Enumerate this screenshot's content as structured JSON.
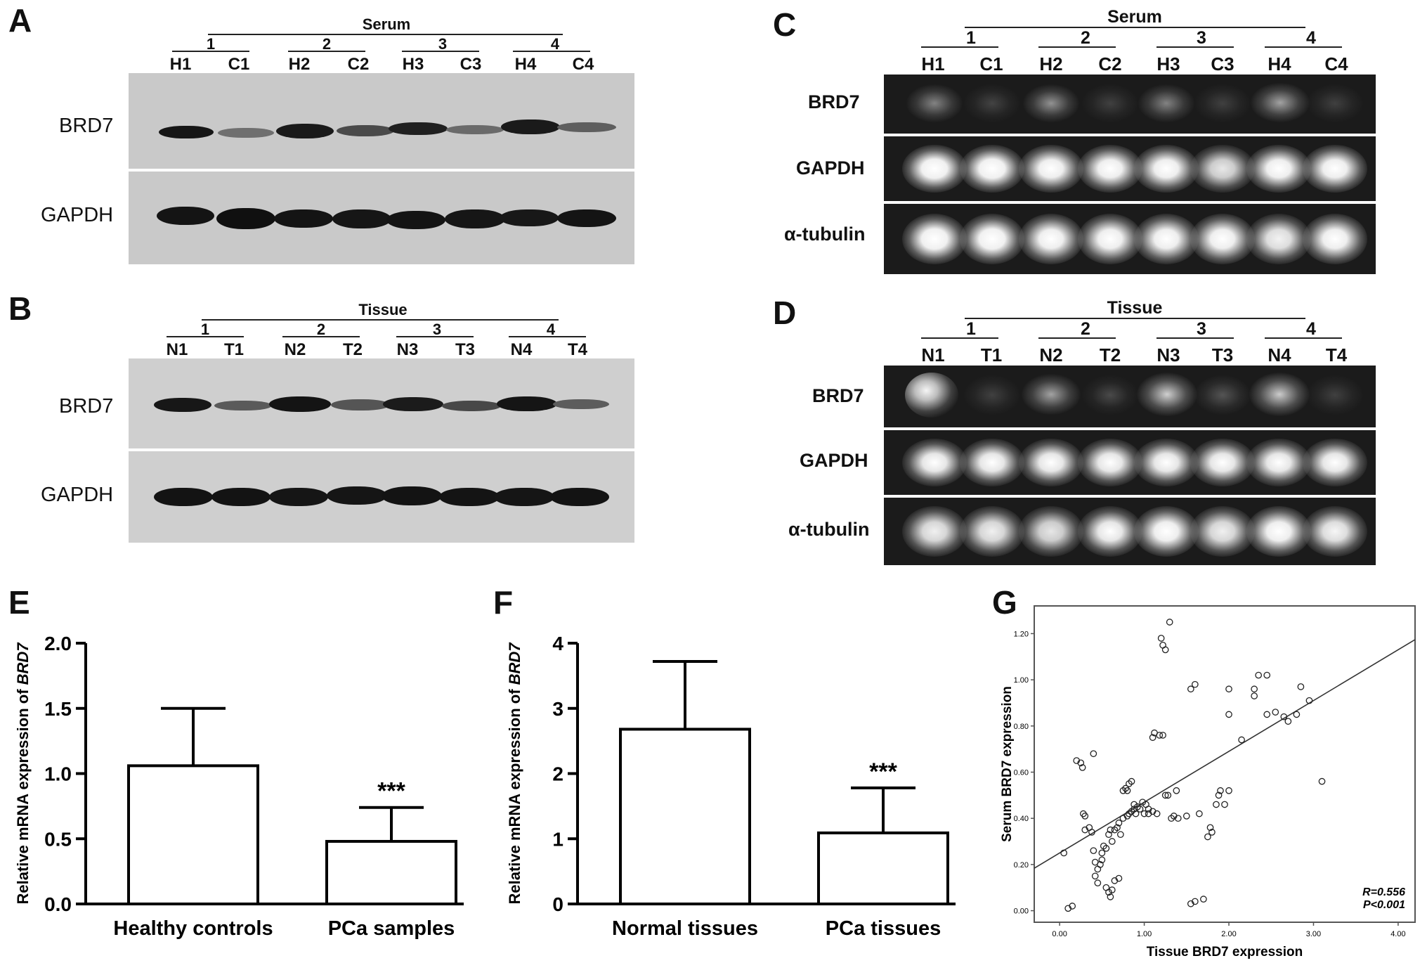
{
  "panels": {
    "A": {
      "label": "A",
      "group": "Serum",
      "pairs": [
        "1",
        "2",
        "3",
        "4"
      ],
      "lanes": [
        "H1",
        "C1",
        "H2",
        "C2",
        "H3",
        "C3",
        "H4",
        "C4"
      ],
      "rows": [
        "BRD7",
        "GAPDH"
      ]
    },
    "B": {
      "label": "B",
      "group": "Tissue",
      "pairs": [
        "1",
        "2",
        "3",
        "4"
      ],
      "lanes": [
        "N1",
        "T1",
        "N2",
        "T2",
        "N3",
        "T3",
        "N4",
        "T4"
      ],
      "rows": [
        "BRD7",
        "GAPDH"
      ]
    },
    "C": {
      "label": "C",
      "group": "Serum",
      "pairs": [
        "1",
        "2",
        "3",
        "4"
      ],
      "lanes": [
        "H1",
        "C1",
        "H2",
        "C2",
        "H3",
        "C3",
        "H4",
        "C4"
      ],
      "rows": [
        "BRD7",
        "GAPDH",
        "α-tubulin"
      ]
    },
    "D": {
      "label": "D",
      "group": "Tissue",
      "pairs": [
        "1",
        "2",
        "3",
        "4"
      ],
      "lanes": [
        "N1",
        "T1",
        "N2",
        "T2",
        "N3",
        "T3",
        "N4",
        "T4"
      ],
      "rows": [
        "BRD7",
        "GAPDH",
        "α-tubulin"
      ]
    }
  },
  "chart_data": [
    {
      "label": "E",
      "type": "bar",
      "categories": [
        "Healthy controls",
        "PCa samples"
      ],
      "values": [
        1.06,
        0.48
      ],
      "errors": [
        0.44,
        0.26
      ],
      "ylabel_prefix": "Relative mRNA expression of ",
      "ylabel_gene": "BRD7",
      "ylim": [
        0,
        2.0
      ],
      "yticks": [
        "0.0",
        "0.5",
        "1.0",
        "1.5",
        "2.0"
      ],
      "annotation": "***",
      "annotation_on": "PCa samples"
    },
    {
      "label": "F",
      "type": "bar",
      "categories": [
        "Normal tissues",
        "PCa tissues"
      ],
      "values": [
        2.68,
        1.09
      ],
      "errors": [
        1.04,
        0.69
      ],
      "ylabel_prefix": "Relative mRNA expression of ",
      "ylabel_gene": "BRD7",
      "ylim": [
        0,
        4
      ],
      "yticks": [
        "0",
        "1",
        "2",
        "3",
        "4"
      ],
      "annotation": "***",
      "annotation_on": "PCa tissues"
    },
    {
      "label": "G",
      "type": "scatter",
      "xlabel": "Tissue BRD7 expression",
      "ylabel": "Serum BRD7 expression",
      "xlim": [
        -0.3,
        4.2
      ],
      "ylim": [
        -0.05,
        1.32
      ],
      "xticks": [
        "0.00",
        "1.00",
        "2.00",
        "3.00",
        "4.00"
      ],
      "yticks": [
        "0.00",
        "0.20",
        "0.40",
        "0.60",
        "0.80",
        "1.00",
        "1.20"
      ],
      "fit": {
        "intercept": 0.25,
        "slope": 0.22
      },
      "stats": [
        "R=0.556",
        "P<0.001"
      ],
      "points": [
        [
          0.05,
          0.25
        ],
        [
          0.1,
          0.01
        ],
        [
          0.15,
          0.02
        ],
        [
          0.2,
          0.65
        ],
        [
          0.25,
          0.64
        ],
        [
          0.27,
          0.62
        ],
        [
          0.28,
          0.42
        ],
        [
          0.3,
          0.41
        ],
        [
          0.3,
          0.35
        ],
        [
          0.35,
          0.36
        ],
        [
          0.38,
          0.34
        ],
        [
          0.4,
          0.68
        ],
        [
          0.4,
          0.26
        ],
        [
          0.42,
          0.21
        ],
        [
          0.42,
          0.15
        ],
        [
          0.45,
          0.18
        ],
        [
          0.45,
          0.12
        ],
        [
          0.48,
          0.2
        ],
        [
          0.5,
          0.22
        ],
        [
          0.5,
          0.25
        ],
        [
          0.52,
          0.28
        ],
        [
          0.55,
          0.1
        ],
        [
          0.55,
          0.27
        ],
        [
          0.58,
          0.33
        ],
        [
          0.58,
          0.08
        ],
        [
          0.6,
          0.06
        ],
        [
          0.6,
          0.35
        ],
        [
          0.62,
          0.3
        ],
        [
          0.62,
          0.09
        ],
        [
          0.65,
          0.13
        ],
        [
          0.65,
          0.35
        ],
        [
          0.68,
          0.36
        ],
        [
          0.7,
          0.14
        ],
        [
          0.7,
          0.38
        ],
        [
          0.72,
          0.33
        ],
        [
          0.75,
          0.52
        ],
        [
          0.75,
          0.4
        ],
        [
          0.78,
          0.53
        ],
        [
          0.8,
          0.52
        ],
        [
          0.8,
          0.41
        ],
        [
          0.82,
          0.55
        ],
        [
          0.82,
          0.42
        ],
        [
          0.85,
          0.56
        ],
        [
          0.85,
          0.43
        ],
        [
          0.88,
          0.44
        ],
        [
          0.88,
          0.46
        ],
        [
          0.9,
          0.42
        ],
        [
          0.92,
          0.45
        ],
        [
          0.95,
          0.44
        ],
        [
          0.98,
          0.47
        ],
        [
          1.0,
          0.42
        ],
        [
          1.02,
          0.46
        ],
        [
          1.05,
          0.44
        ],
        [
          1.05,
          0.42
        ],
        [
          1.1,
          0.43
        ],
        [
          1.1,
          0.75
        ],
        [
          1.12,
          0.77
        ],
        [
          1.15,
          0.42
        ],
        [
          1.18,
          0.76
        ],
        [
          1.2,
          1.18
        ],
        [
          1.22,
          0.76
        ],
        [
          1.22,
          1.15
        ],
        [
          1.25,
          1.13
        ],
        [
          1.25,
          0.5
        ],
        [
          1.28,
          0.5
        ],
        [
          1.3,
          1.25
        ],
        [
          1.32,
          0.4
        ],
        [
          1.35,
          0.41
        ],
        [
          1.38,
          0.52
        ],
        [
          1.4,
          0.4
        ],
        [
          1.5,
          0.41
        ],
        [
          1.55,
          0.96
        ],
        [
          1.55,
          0.03
        ],
        [
          1.6,
          0.98
        ],
        [
          1.6,
          0.04
        ],
        [
          1.65,
          0.42
        ],
        [
          1.7,
          0.05
        ],
        [
          1.75,
          0.32
        ],
        [
          1.78,
          0.36
        ],
        [
          1.8,
          0.34
        ],
        [
          1.85,
          0.46
        ],
        [
          1.88,
          0.5
        ],
        [
          1.9,
          0.52
        ],
        [
          1.95,
          0.46
        ],
        [
          2.0,
          0.96
        ],
        [
          2.0,
          0.85
        ],
        [
          2.0,
          0.52
        ],
        [
          2.15,
          0.74
        ],
        [
          2.3,
          0.96
        ],
        [
          2.3,
          0.93
        ],
        [
          2.35,
          1.02
        ],
        [
          2.45,
          1.02
        ],
        [
          2.45,
          0.85
        ],
        [
          2.55,
          0.86
        ],
        [
          2.65,
          0.84
        ],
        [
          2.7,
          0.82
        ],
        [
          2.8,
          0.85
        ],
        [
          2.85,
          0.97
        ],
        [
          2.95,
          0.91
        ],
        [
          3.1,
          0.56
        ]
      ]
    }
  ]
}
